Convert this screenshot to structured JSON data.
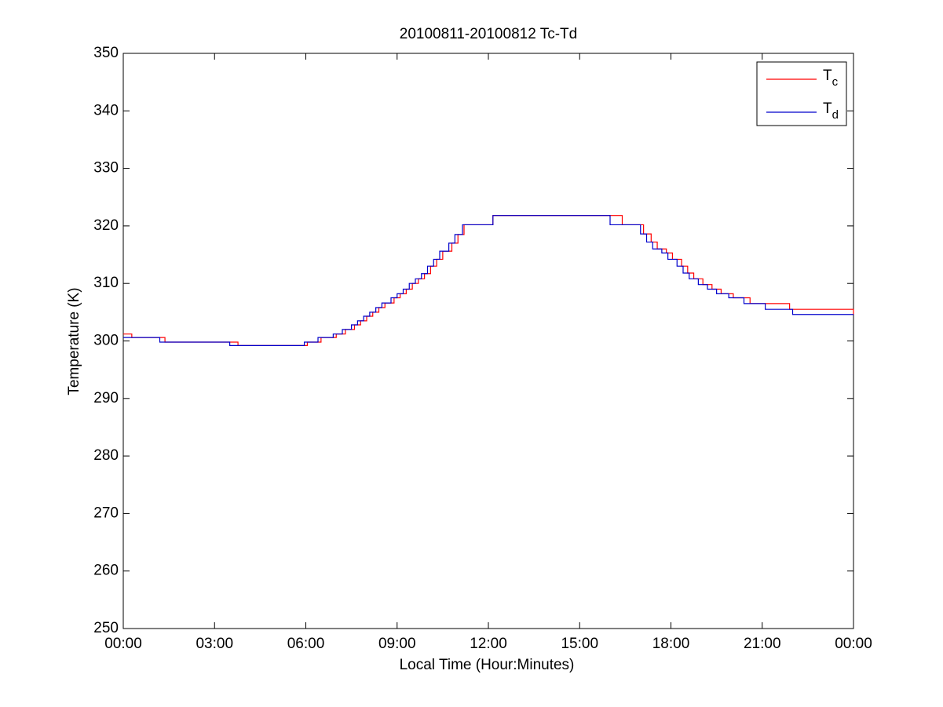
{
  "chart_data": {
    "type": "line",
    "title": "20100811-20100812 Tc-Td",
    "xlabel": "Local Time (Hour:Minutes)",
    "ylabel": "Temperature (K)",
    "xlim": [
      0,
      24
    ],
    "ylim": [
      250,
      350
    ],
    "xticks": [
      {
        "value": 0,
        "label": "00:00"
      },
      {
        "value": 3,
        "label": "03:00"
      },
      {
        "value": 6,
        "label": "06:00"
      },
      {
        "value": 9,
        "label": "09:00"
      },
      {
        "value": 12,
        "label": "12:00"
      },
      {
        "value": 15,
        "label": "15:00"
      },
      {
        "value": 18,
        "label": "18:00"
      },
      {
        "value": 21,
        "label": "21:00"
      },
      {
        "value": 24,
        "label": "00:00"
      }
    ],
    "yticks": [
      250,
      260,
      270,
      280,
      290,
      300,
      310,
      320,
      330,
      340,
      350
    ],
    "drawstyle": "steps-post",
    "grid": false,
    "legend": "upper right",
    "series": [
      {
        "name": "Tc",
        "color": "#ff0000",
        "x": [
          0,
          0.28,
          1.37,
          3.77,
          6.05,
          6.5,
          7.0,
          7.3,
          7.6,
          7.8,
          8.0,
          8.2,
          8.4,
          8.6,
          8.9,
          9.1,
          9.3,
          9.5,
          9.7,
          9.9,
          10.1,
          10.3,
          10.5,
          10.8,
          11.0,
          11.2,
          12.15,
          16.4,
          17.1,
          17.35,
          17.55,
          17.85,
          18.05,
          18.35,
          18.55,
          18.75,
          19.05,
          19.35,
          19.65,
          20.05,
          20.6,
          21.9,
          24
        ],
        "values": [
          301.2,
          300.6,
          299.8,
          299.2,
          299.8,
          300.6,
          301.2,
          302.0,
          302.8,
          303.5,
          304.3,
          305.0,
          305.8,
          306.6,
          307.5,
          308.2,
          309.0,
          310.0,
          310.8,
          311.7,
          313.0,
          314.2,
          315.6,
          317.0,
          318.5,
          320.2,
          321.8,
          320.2,
          318.6,
          317.2,
          316.0,
          315.3,
          314.2,
          313.0,
          311.8,
          310.8,
          309.8,
          309.0,
          308.2,
          307.5,
          306.5,
          305.5,
          304.6
        ]
      },
      {
        "name": "Td",
        "color": "#0000cc",
        "x": [
          0,
          1.2,
          3.5,
          5.95,
          6.4,
          6.9,
          7.2,
          7.5,
          7.7,
          7.9,
          8.1,
          8.3,
          8.5,
          8.8,
          9.0,
          9.2,
          9.4,
          9.6,
          9.8,
          10.0,
          10.2,
          10.4,
          10.7,
          10.9,
          11.15,
          12.15,
          16.0,
          17.0,
          17.2,
          17.4,
          17.7,
          17.9,
          18.2,
          18.4,
          18.6,
          18.9,
          19.2,
          19.5,
          19.9,
          20.4,
          21.1,
          22.0,
          24
        ],
        "values": [
          300.6,
          299.8,
          299.2,
          299.8,
          300.6,
          301.2,
          302.0,
          302.8,
          303.5,
          304.3,
          305.0,
          305.8,
          306.6,
          307.5,
          308.2,
          309.0,
          310.0,
          310.8,
          311.7,
          313.0,
          314.2,
          315.6,
          317.0,
          318.5,
          320.2,
          321.8,
          320.2,
          318.6,
          317.2,
          316.0,
          315.3,
          314.2,
          313.0,
          311.8,
          310.8,
          309.8,
          309.0,
          308.2,
          307.5,
          306.5,
          305.5,
          304.6,
          304.6
        ]
      }
    ]
  }
}
